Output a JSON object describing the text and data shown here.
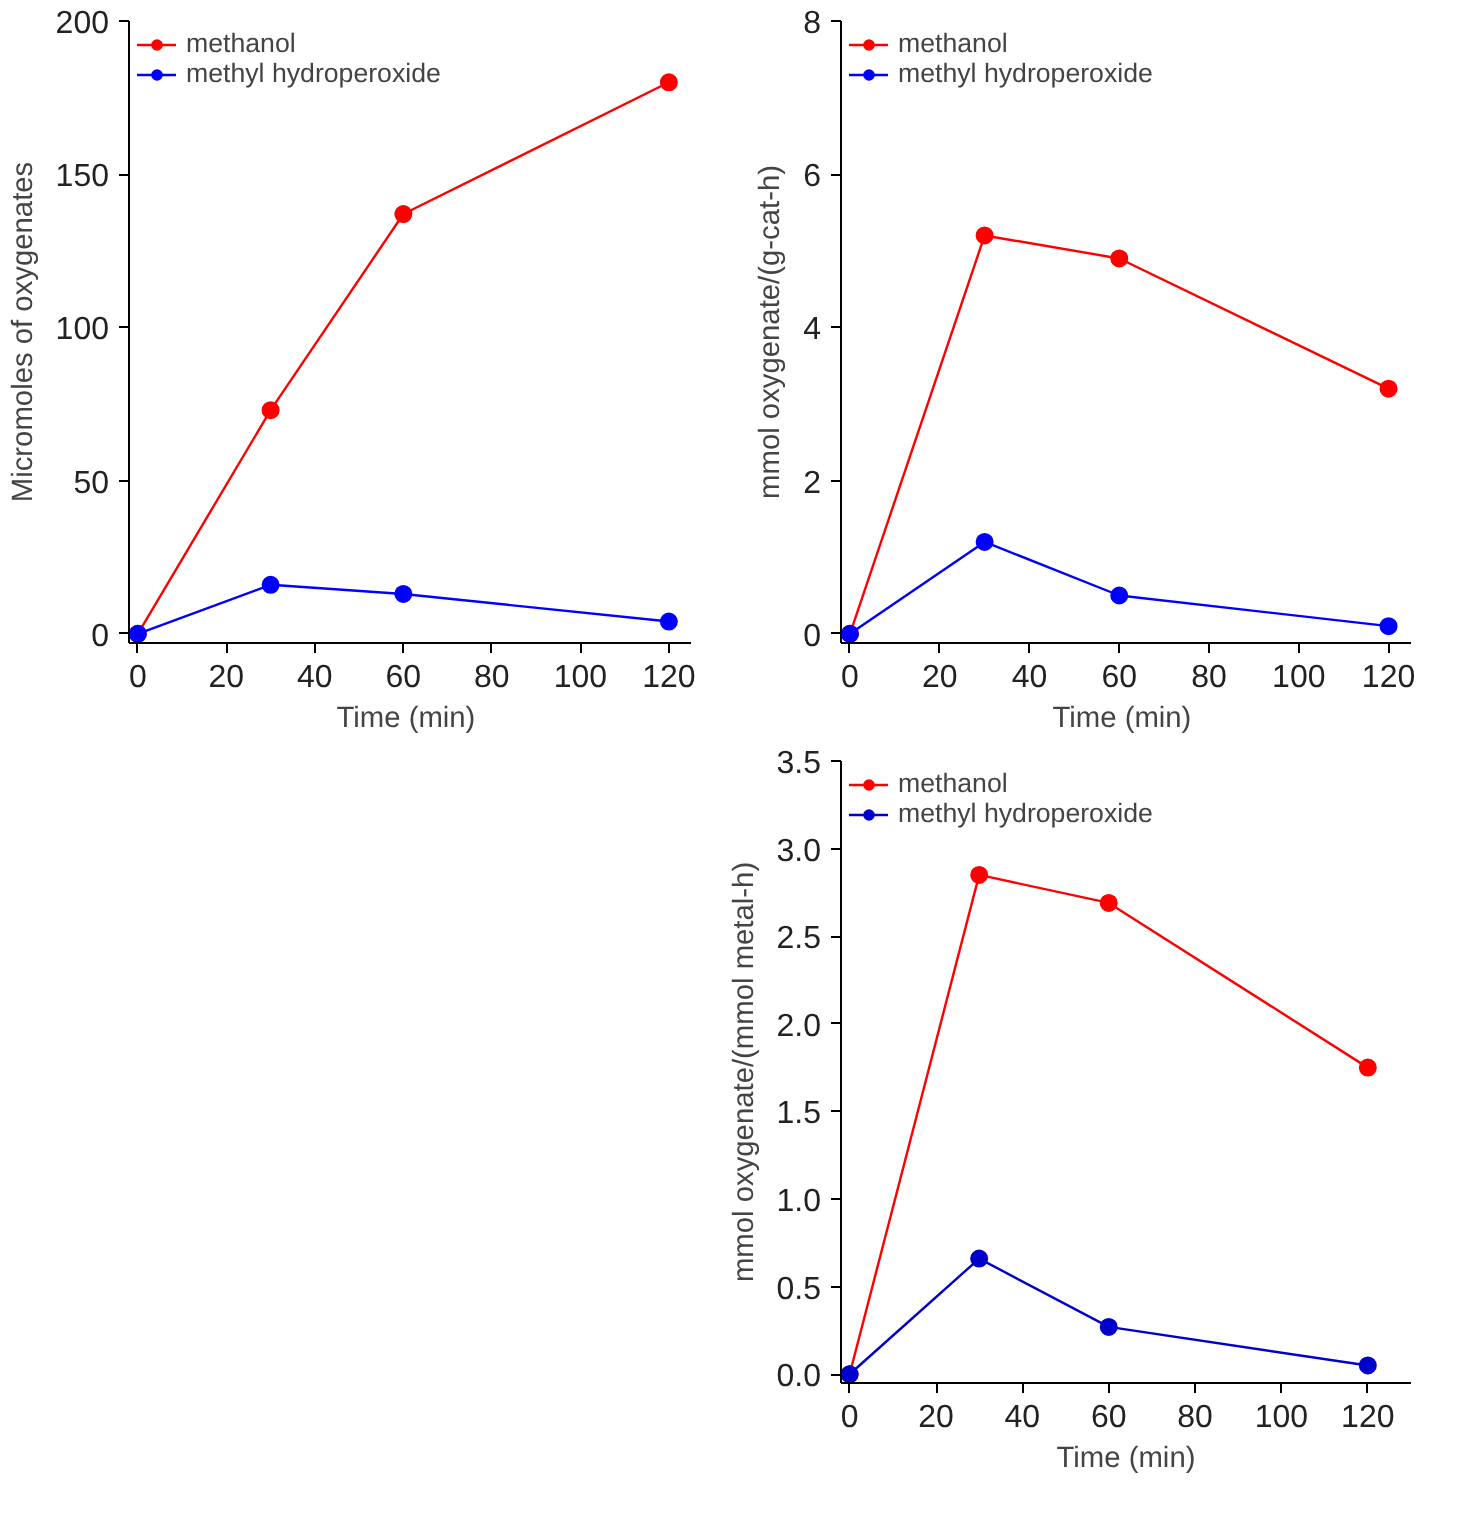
{
  "chart_data": [
    {
      "type": "line",
      "xlabel": "Time  (min)",
      "ylabel": "Micromoles of oxygenates",
      "x": [
        0,
        30,
        60,
        120
      ],
      "xlim": [
        -2,
        125
      ],
      "xticks": [
        0,
        20,
        40,
        60,
        80,
        100,
        120
      ],
      "ylim": [
        -3,
        200
      ],
      "yticks": [
        0,
        50,
        100,
        150,
        200
      ],
      "grid": false,
      "legend": "top left",
      "marker": "circle",
      "line_style": "solid",
      "series": [
        {
          "name": "methanol",
          "color": "#ff0000",
          "values": [
            0,
            73,
            137,
            180
          ]
        },
        {
          "name": "methyl hydroperoxide",
          "color": "#0000ff",
          "values": [
            0,
            16,
            13,
            4
          ]
        }
      ]
    },
    {
      "type": "line",
      "xlabel": "Time  (min)",
      "ylabel": "mmol oxygenate/(g-cat-h)",
      "x": [
        0,
        30,
        60,
        120
      ],
      "xlim": [
        -2,
        125
      ],
      "xticks": [
        0,
        20,
        40,
        60,
        80,
        100,
        120
      ],
      "ylim": [
        -0.12,
        8
      ],
      "yticks": [
        0,
        2,
        4,
        6,
        8
      ],
      "grid": false,
      "legend": "top left",
      "marker": "circle",
      "line_style": "solid",
      "series": [
        {
          "name": "methanol",
          "color": "#ff0000",
          "values": [
            0,
            5.2,
            4.9,
            3.2
          ]
        },
        {
          "name": "methyl hydroperoxide",
          "color": "#0000ff",
          "values": [
            0,
            1.2,
            0.5,
            0.1
          ]
        }
      ]
    },
    {
      "type": "line",
      "xlabel": "Time (min)",
      "ylabel": "mmol oxygenate/(mmol metal-h)",
      "x": [
        0,
        30,
        60,
        120
      ],
      "xlim": [
        -2,
        130
      ],
      "xticks": [
        0,
        20,
        40,
        60,
        80,
        100,
        120
      ],
      "ylim": [
        -0.05,
        3.5
      ],
      "yticks": [
        {
          "value": 0,
          "label": "0.0"
        },
        {
          "value": 0.5,
          "label": "0.5"
        },
        {
          "value": 1,
          "label": "1.0"
        },
        {
          "value": 1.5,
          "label": "1.5"
        },
        {
          "value": 2,
          "label": "2.0"
        },
        {
          "value": 2.5,
          "label": "2.5"
        },
        {
          "value": 3,
          "label": "3.0"
        },
        {
          "value": 3.5,
          "label": "3.5"
        }
      ],
      "grid": false,
      "legend": "top left",
      "marker": "circle",
      "line_style": "solid",
      "series": [
        {
          "name": "methanol",
          "color": "#ff0000",
          "values": [
            0,
            2.85,
            2.69,
            1.75
          ]
        },
        {
          "name": "methyl hydroperoxide",
          "color": "#0000cc",
          "values": [
            0,
            0.66,
            0.27,
            0.05
          ]
        }
      ]
    }
  ]
}
